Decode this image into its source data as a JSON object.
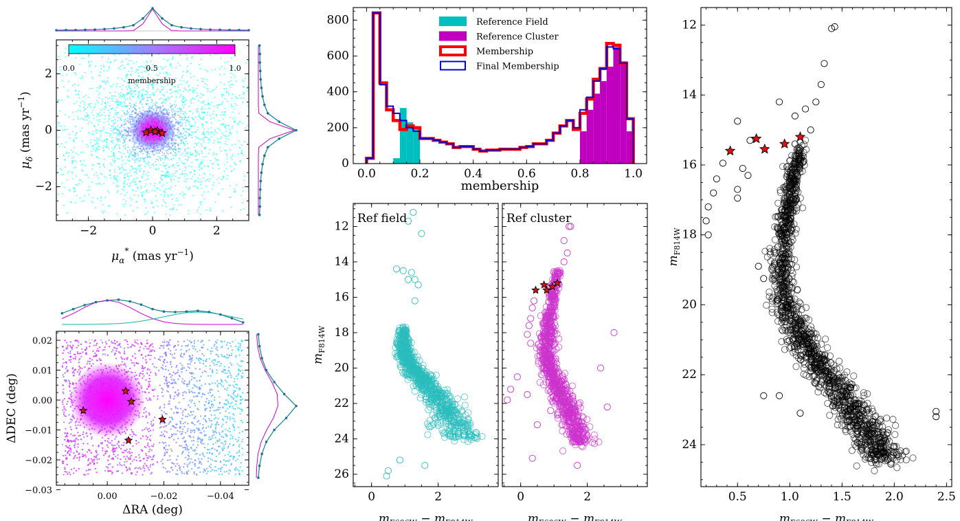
{
  "figure": {
    "colorbar_label": "membership",
    "colorbar_ticks": [
      "0.0",
      "0.5",
      "1.0"
    ],
    "colorbar_colors": [
      "#00ffff",
      "#ff00ff"
    ]
  },
  "chart_data": [
    {
      "type": "scatter",
      "name_hint": "proper motion vector point diagram",
      "xlabel": "μα* (mas yr⁻¹)",
      "ylabel": "μδ (mas yr⁻¹)",
      "xlim": [
        -3,
        3
      ],
      "ylim": [
        -3.2,
        3.2
      ],
      "xticks": [
        -2,
        0,
        2
      ],
      "yticks": [
        -2,
        0,
        2
      ],
      "color_by": "membership",
      "cluster_center": [
        0,
        0
      ],
      "cluster_sigma": 0.45,
      "field_sigma": 2.2,
      "highlighted_stars": [
        [
          -0.2,
          -0.08
        ],
        [
          -0.05,
          0.0
        ],
        [
          0.15,
          -0.02
        ],
        [
          0.3,
          -0.1
        ],
        [
          0.08,
          -0.05
        ]
      ],
      "top_histogram": {
        "x": [
          -3.0,
          -2.7,
          -2.4,
          -2.1,
          -1.8,
          -1.5,
          -1.2,
          -0.9,
          -0.6,
          -0.3,
          0.0,
          0.3,
          0.6,
          0.9,
          1.2,
          1.5,
          1.8,
          2.1,
          2.4,
          2.7,
          3.0
        ],
        "y": [
          0.03,
          0.04,
          0.04,
          0.05,
          0.06,
          0.08,
          0.11,
          0.16,
          0.25,
          0.55,
          1.0,
          0.55,
          0.25,
          0.16,
          0.11,
          0.08,
          0.06,
          0.05,
          0.04,
          0.04,
          0.03
        ]
      },
      "right_histogram": {
        "y": [
          3.0,
          2.7,
          2.4,
          2.1,
          1.8,
          1.5,
          1.2,
          0.9,
          0.6,
          0.3,
          0.0,
          -0.3,
          -0.6,
          -0.9,
          -1.2,
          -1.5,
          -1.8,
          -2.1,
          -2.4,
          -2.7,
          -3.0
        ],
        "x": [
          0.03,
          0.04,
          0.04,
          0.05,
          0.06,
          0.08,
          0.11,
          0.16,
          0.25,
          0.55,
          1.0,
          0.55,
          0.25,
          0.16,
          0.11,
          0.08,
          0.06,
          0.05,
          0.04,
          0.04,
          0.03
        ]
      }
    },
    {
      "type": "scatter",
      "name_hint": "sky position",
      "xlabel": "ΔRA (deg)",
      "ylabel": "ΔDEC (deg)",
      "xlim": [
        0.018,
        -0.05
      ],
      "ylim": [
        -0.0285,
        0.023
      ],
      "xticks": [
        0.0,
        -0.02,
        -0.04
      ],
      "xticklabels": [
        "0.00",
        "−0.02",
        "−0.04"
      ],
      "yticks": [
        0.02,
        0.01,
        0.0,
        -0.01,
        -0.02,
        -0.03
      ],
      "yticklabels": [
        "0.02",
        "0.01",
        "0.00",
        "−0.01",
        "−0.02",
        "−0.03"
      ],
      "color_by": "membership",
      "highlighted_stars": [
        [
          -0.0065,
          0.003
        ],
        [
          -0.0085,
          -0.0005
        ],
        [
          0.0085,
          -0.0035
        ],
        [
          -0.0195,
          -0.0065
        ],
        [
          -0.0075,
          -0.0135
        ]
      ],
      "top_histogram": {
        "x": [
          0.016,
          0.012,
          0.008,
          0.004,
          0.0,
          -0.004,
          -0.008,
          -0.012,
          -0.016,
          -0.02,
          -0.024,
          -0.028,
          -0.032,
          -0.036,
          -0.04,
          -0.044,
          -0.048
        ],
        "y": [
          0.45,
          0.62,
          0.78,
          0.9,
          0.97,
          1.0,
          0.93,
          0.8,
          0.62,
          0.52,
          0.5,
          0.52,
          0.55,
          0.5,
          0.4,
          0.25,
          0.08
        ]
      },
      "right_histogram": {
        "y": [
          0.022,
          0.018,
          0.014,
          0.01,
          0.006,
          0.002,
          -0.002,
          -0.006,
          -0.01,
          -0.014,
          -0.018,
          -0.022,
          -0.026
        ],
        "x": [
          0.05,
          0.08,
          0.14,
          0.25,
          0.45,
          0.7,
          1.0,
          0.75,
          0.45,
          0.25,
          0.14,
          0.08,
          0.05
        ]
      }
    },
    {
      "type": "bar",
      "name_hint": "membership histogram",
      "xlabel": "membership",
      "ylabel": "",
      "xlim": [
        -0.05,
        1.05
      ],
      "ylim": [
        0,
        870
      ],
      "xticks": [
        0.0,
        0.2,
        0.4,
        0.6,
        0.8,
        1.0
      ],
      "xticklabels": [
        "0.0",
        "0.2",
        "0.4",
        "0.6",
        "0.8",
        "1.0"
      ],
      "yticks": [
        0,
        200,
        400,
        600,
        800
      ],
      "bin_width": 0.025,
      "bin_starts": [
        0.0,
        0.025,
        0.05,
        0.075,
        0.1,
        0.125,
        0.15,
        0.175,
        0.2,
        0.225,
        0.25,
        0.275,
        0.3,
        0.325,
        0.35,
        0.375,
        0.4,
        0.425,
        0.45,
        0.475,
        0.5,
        0.525,
        0.55,
        0.575,
        0.6,
        0.625,
        0.65,
        0.675,
        0.7,
        0.725,
        0.75,
        0.775,
        0.8,
        0.825,
        0.85,
        0.875,
        0.9,
        0.925,
        0.95,
        0.975
      ],
      "series": [
        {
          "name": "Reference Field",
          "color": "#00bfbf",
          "style": "filled",
          "values": [
            0,
            0,
            0,
            0,
            30,
            310,
            230,
            200,
            0,
            0,
            0,
            0,
            0,
            0,
            0,
            0,
            0,
            0,
            0,
            0,
            0,
            0,
            0,
            0,
            0,
            0,
            0,
            0,
            0,
            0,
            0,
            0,
            0,
            0,
            0,
            0,
            0,
            0,
            0,
            0
          ]
        },
        {
          "name": "Reference Cluster",
          "color": "#bf00bf",
          "style": "filled",
          "values": [
            0,
            0,
            0,
            0,
            0,
            0,
            0,
            0,
            0,
            0,
            0,
            0,
            0,
            0,
            0,
            0,
            0,
            0,
            0,
            0,
            0,
            0,
            0,
            0,
            0,
            0,
            0,
            0,
            0,
            0,
            0,
            0,
            180,
            300,
            390,
            460,
            540,
            650,
            570,
            180
          ]
        },
        {
          "name": "Membership",
          "color": "#ff0000",
          "style": "step",
          "values": [
            30,
            840,
            450,
            300,
            240,
            190,
            210,
            200,
            140,
            140,
            130,
            120,
            110,
            90,
            95,
            95,
            80,
            70,
            75,
            75,
            80,
            80,
            80,
            90,
            95,
            110,
            110,
            130,
            170,
            210,
            240,
            190,
            280,
            360,
            470,
            530,
            670,
            660,
            560,
            250
          ]
        },
        {
          "name": "Final Membership",
          "color": "#0000d0",
          "style": "step",
          "values": [
            30,
            840,
            440,
            320,
            280,
            240,
            200,
            180,
            140,
            140,
            130,
            120,
            110,
            90,
            95,
            95,
            80,
            70,
            75,
            75,
            80,
            80,
            80,
            90,
            95,
            110,
            110,
            130,
            170,
            210,
            240,
            200,
            300,
            370,
            460,
            530,
            650,
            640,
            560,
            250
          ]
        }
      ],
      "legend": [
        "Reference Field",
        "Reference Cluster",
        "Membership",
        "Final Membership"
      ],
      "legend_location": "top-center"
    },
    {
      "type": "scatter",
      "name_hint": "CMD reference field",
      "panel_label": "Ref field",
      "xlabel": "m_F606W − m_F814W",
      "ylabel": "m_F814W",
      "xlim": [
        -0.55,
        3.8
      ],
      "ylim": [
        26.7,
        10.7
      ],
      "xticks": [
        0,
        2
      ],
      "yticks": [
        12,
        14,
        16,
        18,
        20,
        22,
        24,
        26
      ],
      "color": "#2bbcbc",
      "points": [
        [
          0.75,
          14.4
        ],
        [
          0.95,
          14.5
        ],
        [
          1.2,
          14.6
        ],
        [
          1.3,
          15.0
        ],
        [
          1.1,
          15.0
        ],
        [
          1.4,
          15.3
        ],
        [
          1.3,
          16.2
        ],
        [
          1.25,
          11.2
        ],
        [
          1.1,
          11.7
        ],
        [
          1.5,
          12.4
        ],
        [
          0.5,
          25.8
        ],
        [
          0.45,
          26.1
        ],
        [
          0.85,
          25.2
        ],
        [
          1.6,
          25.5
        ]
      ],
      "trend": [
        [
          0.95,
          17.8
        ],
        [
          0.95,
          18.5
        ],
        [
          1.0,
          19.2
        ],
        [
          1.15,
          19.8
        ],
        [
          1.4,
          20.4
        ],
        [
          1.7,
          21.0
        ],
        [
          2.0,
          21.7
        ],
        [
          2.3,
          22.5
        ],
        [
          2.55,
          23.3
        ],
        [
          2.75,
          24.0
        ]
      ]
    },
    {
      "type": "scatter",
      "name_hint": "CMD reference cluster",
      "panel_label": "Ref cluster",
      "xlabel": "m_F606W − m_F814W",
      "ylabel": "",
      "xlim": [
        -0.55,
        3.8
      ],
      "ylim": [
        26.7,
        10.7
      ],
      "xticks": [
        0,
        2
      ],
      "yticks": [
        12,
        14,
        16,
        18,
        20,
        22,
        24,
        26
      ],
      "color": "#cc33cc",
      "highlighted_stars": [
        [
          0.45,
          15.6
        ],
        [
          0.7,
          15.3
        ],
        [
          0.78,
          15.6
        ],
        [
          0.95,
          15.4
        ],
        [
          1.1,
          15.2
        ]
      ],
      "points": [
        [
          1.45,
          12.0
        ],
        [
          1.5,
          12.0
        ],
        [
          1.3,
          12.8
        ],
        [
          1.4,
          13.5
        ],
        [
          1.3,
          14.0
        ],
        [
          0.4,
          16.2
        ],
        [
          0.35,
          16.6
        ],
        [
          0.3,
          17.2
        ],
        [
          0.25,
          17.6
        ],
        [
          0.2,
          18.1
        ],
        [
          0.3,
          18.6
        ],
        [
          -0.1,
          20.5
        ],
        [
          -0.3,
          21.2
        ],
        [
          0.2,
          21.5
        ],
        [
          -0.4,
          21.8
        ],
        [
          2.8,
          18.0
        ],
        [
          2.4,
          20.0
        ],
        [
          2.6,
          22.2
        ],
        [
          0.9,
          22.4
        ],
        [
          0.5,
          23.2
        ],
        [
          0.35,
          25.1
        ],
        [
          1.7,
          25.5
        ]
      ],
      "trend": [
        [
          1.1,
          14.5
        ],
        [
          0.95,
          16.0
        ],
        [
          0.85,
          17.5
        ],
        [
          0.8,
          18.5
        ],
        [
          0.8,
          19.5
        ],
        [
          0.95,
          20.4
        ],
        [
          1.15,
          21.2
        ],
        [
          1.35,
          22.0
        ],
        [
          1.5,
          22.8
        ],
        [
          1.7,
          23.6
        ],
        [
          1.85,
          24.3
        ]
      ]
    },
    {
      "type": "scatter",
      "name_hint": "final CMD",
      "xlabel": "m_F606W − m_F814W",
      "ylabel": "m_F814W",
      "xlim": [
        0.15,
        2.55
      ],
      "ylim": [
        25.2,
        11.5
      ],
      "xticks": [
        0.5,
        1.0,
        1.5,
        2.0,
        2.5
      ],
      "xticklabels": [
        "0.5",
        "1.0",
        "1.5",
        "2.0",
        "2.5"
      ],
      "yticks": [
        12,
        14,
        16,
        18,
        20,
        22,
        24
      ],
      "color": "#000000",
      "highlighted_stars": [
        [
          0.43,
          15.6
        ],
        [
          0.68,
          15.25
        ],
        [
          0.76,
          15.55
        ],
        [
          0.95,
          15.4
        ],
        [
          1.1,
          15.2
        ]
      ],
      "points": [
        [
          1.4,
          12.1
        ],
        [
          1.43,
          12.05
        ],
        [
          1.33,
          13.1
        ],
        [
          1.3,
          13.7
        ],
        [
          1.25,
          14.2
        ],
        [
          1.15,
          14.4
        ],
        [
          1.05,
          14.6
        ],
        [
          0.9,
          14.2
        ],
        [
          1.2,
          15.0
        ],
        [
          1.05,
          15.4
        ],
        [
          0.5,
          14.75
        ],
        [
          0.62,
          15.3
        ],
        [
          0.36,
          15.95
        ],
        [
          0.3,
          16.4
        ],
        [
          0.27,
          16.8
        ],
        [
          0.22,
          17.2
        ],
        [
          0.2,
          17.6
        ],
        [
          0.22,
          18.0
        ],
        [
          0.5,
          16.7
        ],
        [
          0.5,
          16.95
        ],
        [
          0.55,
          16.1
        ],
        [
          0.6,
          16.3
        ],
        [
          0.7,
          18.9
        ],
        [
          0.75,
          19.25
        ],
        [
          2.4,
          23.05
        ],
        [
          2.4,
          23.2
        ],
        [
          1.9,
          24.2
        ],
        [
          1.8,
          24.3
        ],
        [
          2.0,
          24.05
        ],
        [
          0.9,
          22.6
        ],
        [
          0.75,
          22.6
        ],
        [
          1.1,
          23.1
        ]
      ],
      "trend": [
        [
          1.1,
          15.5
        ],
        [
          1.02,
          16.5
        ],
        [
          0.97,
          17.5
        ],
        [
          0.93,
          18.5
        ],
        [
          0.93,
          19.5
        ],
        [
          1.0,
          20.3
        ],
        [
          1.12,
          21.0
        ],
        [
          1.25,
          21.6
        ],
        [
          1.4,
          22.2
        ],
        [
          1.55,
          22.8
        ],
        [
          1.7,
          23.4
        ],
        [
          1.82,
          24.0
        ],
        [
          1.92,
          24.5
        ]
      ]
    }
  ]
}
